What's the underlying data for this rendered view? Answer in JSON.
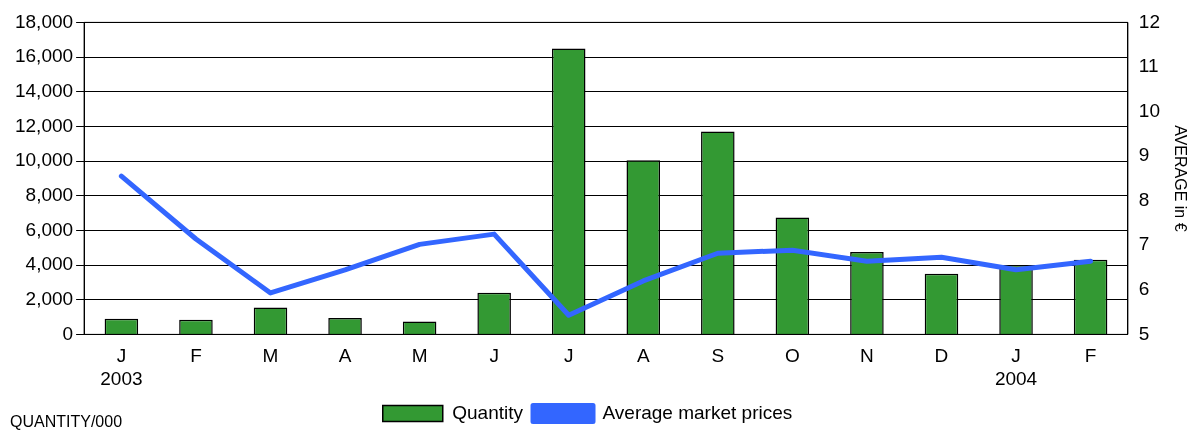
{
  "chart_data": {
    "type": "bar",
    "categories": [
      "J\n2003",
      "F",
      "M",
      "A",
      "M",
      "J",
      "J",
      "A",
      "S",
      "O",
      "N",
      "D",
      "J\n2004",
      "F"
    ],
    "series": [
      {
        "name": "Quantity",
        "color": "#339933",
        "values": [
          900,
          850,
          1550,
          950,
          750,
          2400,
          16500,
          10050,
          11700,
          6750,
          4750,
          3500,
          4000,
          4300
        ]
      },
      {
        "name": "Average market prices",
        "type": "line",
        "axis": "y2",
        "color": "#3366ff",
        "values": [
          8.55,
          7.14,
          5.93,
          6.45,
          7.02,
          7.25,
          5.43,
          6.2,
          6.82,
          6.89,
          6.64,
          6.73,
          6.45,
          6.64
        ]
      }
    ],
    "ylabel": "QUANTITY/000",
    "y2label": "AVERAGE in €",
    "ylim": [
      0,
      18000
    ],
    "yticks": [
      {
        "value": 0,
        "label": "0"
      },
      {
        "value": 2000,
        "label": "2,000"
      },
      {
        "value": 4000,
        "label": "4,000"
      },
      {
        "value": 6000,
        "label": "6,000"
      },
      {
        "value": 8000,
        "label": "8,000"
      },
      {
        "value": 10000,
        "label": "10,000"
      },
      {
        "value": 12000,
        "label": "12,000"
      },
      {
        "value": 14000,
        "label": "14,000"
      },
      {
        "value": 16000,
        "label": "16,000"
      },
      {
        "value": 18000,
        "label": "18,000"
      }
    ],
    "y2lim": [
      5,
      12
    ],
    "y2ticks": [
      5,
      6,
      7,
      8,
      9,
      10,
      11,
      12
    ],
    "grid": "y",
    "legend": "bottom",
    "marker": "none"
  }
}
